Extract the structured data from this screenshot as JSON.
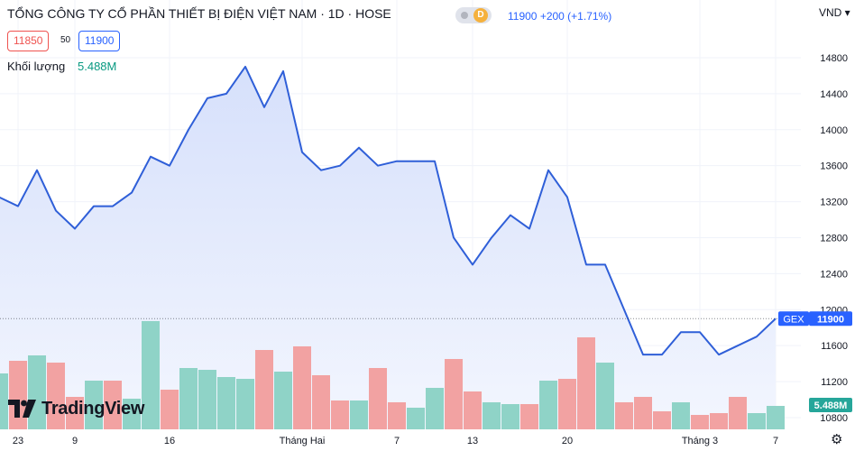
{
  "header": {
    "title": "TỔNG CÔNG TY CỔ PHẦN THIẾT BỊ ĐIỆN VIỆT NAM · 1D · HOSE",
    "badge": "D",
    "quote": "11900  +200 (+1.71%)",
    "currency": "VND"
  },
  "quote_boxes": {
    "bid": "11850",
    "spread": "50",
    "ask": "11900"
  },
  "volume_legend": {
    "label": "Khối lượng",
    "value": "5.488M"
  },
  "branding": {
    "logo_text": "TradingView"
  },
  "colors": {
    "line": "#2f5fd8",
    "area_top": "#d6e0fb",
    "area_bottom": "#f3f6fe",
    "volume_up": "#8fd3c7",
    "volume_down": "#f2a2a2",
    "last_price": "#2962ff",
    "volume_badge": "#26a69a"
  },
  "chart_data": {
    "type": "area",
    "symbol_label": "GEX",
    "last_price": 11900,
    "last_volume_label": "5.488M",
    "price_scale": {
      "range": [
        10850,
        14900
      ],
      "ticks": [
        "10800",
        "11200",
        "11600",
        "12000",
        "12400",
        "12800",
        "13200",
        "13600",
        "14000",
        "14400",
        "14800"
      ]
    },
    "x_tick_labels": [
      "23",
      "9",
      "16",
      "Tháng Hai",
      "7",
      "13",
      "20",
      "Tháng 3",
      "7"
    ],
    "x_tick_positions": [
      1,
      4,
      9,
      16,
      21,
      25,
      30,
      37,
      41
    ],
    "series": [
      {
        "values": [
          13250,
          13150,
          13550,
          13100,
          12900,
          13150,
          13150,
          13300,
          13700,
          13600,
          14000,
          14350,
          14400,
          14700,
          14250,
          14650,
          13750,
          13550,
          13600,
          13800,
          13600,
          13650,
          13650,
          13650,
          12800,
          12500,
          12800,
          13050,
          12900,
          13550,
          13250,
          12500,
          12500,
          12000,
          11500,
          11500,
          11750,
          11750,
          11500,
          11600,
          11700,
          11900
        ]
      }
    ],
    "volume_bars": [
      {
        "v": 1.55,
        "dir": "up"
      },
      {
        "v": 1.9,
        "dir": "down"
      },
      {
        "v": 2.05,
        "dir": "up"
      },
      {
        "v": 1.85,
        "dir": "down"
      },
      {
        "v": 0.9,
        "dir": "down"
      },
      {
        "v": 1.35,
        "dir": "up"
      },
      {
        "v": 1.35,
        "dir": "down"
      },
      {
        "v": 0.85,
        "dir": "up"
      },
      {
        "v": 3.0,
        "dir": "up"
      },
      {
        "v": 1.1,
        "dir": "down"
      },
      {
        "v": 1.7,
        "dir": "up"
      },
      {
        "v": 1.65,
        "dir": "up"
      },
      {
        "v": 1.45,
        "dir": "up"
      },
      {
        "v": 1.4,
        "dir": "up"
      },
      {
        "v": 2.2,
        "dir": "down"
      },
      {
        "v": 1.6,
        "dir": "up"
      },
      {
        "v": 2.3,
        "dir": "down"
      },
      {
        "v": 1.5,
        "dir": "down"
      },
      {
        "v": 0.8,
        "dir": "down"
      },
      {
        "v": 0.8,
        "dir": "up"
      },
      {
        "v": 1.7,
        "dir": "down"
      },
      {
        "v": 0.75,
        "dir": "down"
      },
      {
        "v": 0.6,
        "dir": "up"
      },
      {
        "v": 1.15,
        "dir": "up"
      },
      {
        "v": 1.95,
        "dir": "down"
      },
      {
        "v": 1.05,
        "dir": "down"
      },
      {
        "v": 0.75,
        "dir": "up"
      },
      {
        "v": 0.7,
        "dir": "up"
      },
      {
        "v": 0.7,
        "dir": "down"
      },
      {
        "v": 1.35,
        "dir": "up"
      },
      {
        "v": 1.4,
        "dir": "down"
      },
      {
        "v": 2.55,
        "dir": "down"
      },
      {
        "v": 1.85,
        "dir": "up"
      },
      {
        "v": 0.75,
        "dir": "down"
      },
      {
        "v": 0.9,
        "dir": "down"
      },
      {
        "v": 0.5,
        "dir": "down"
      },
      {
        "v": 0.75,
        "dir": "up"
      },
      {
        "v": 0.4,
        "dir": "down"
      },
      {
        "v": 0.45,
        "dir": "down"
      },
      {
        "v": 0.9,
        "dir": "down"
      },
      {
        "v": 0.45,
        "dir": "up"
      },
      {
        "v": 0.65,
        "dir": "up"
      }
    ]
  }
}
